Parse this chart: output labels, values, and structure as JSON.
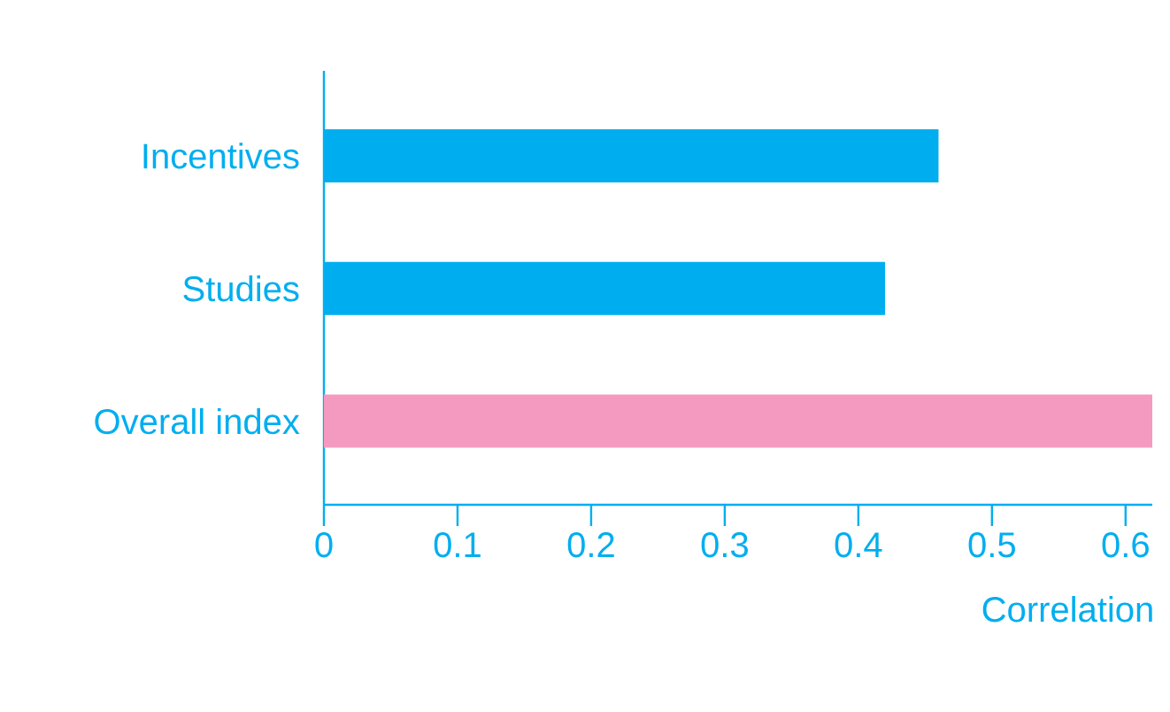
{
  "chart_data": {
    "type": "bar",
    "orientation": "horizontal",
    "xlabel": "Correlation",
    "categories": [
      "Incentives",
      "Studies",
      "Overall index"
    ],
    "values": [
      0.46,
      0.42,
      0.62
    ],
    "colors": [
      "#00aeef",
      "#00aeef",
      "#f49ac1"
    ],
    "xlim": [
      0,
      0.62
    ],
    "xticks": [
      0,
      0.1,
      0.2,
      0.3,
      0.4,
      0.5,
      0.6
    ]
  }
}
